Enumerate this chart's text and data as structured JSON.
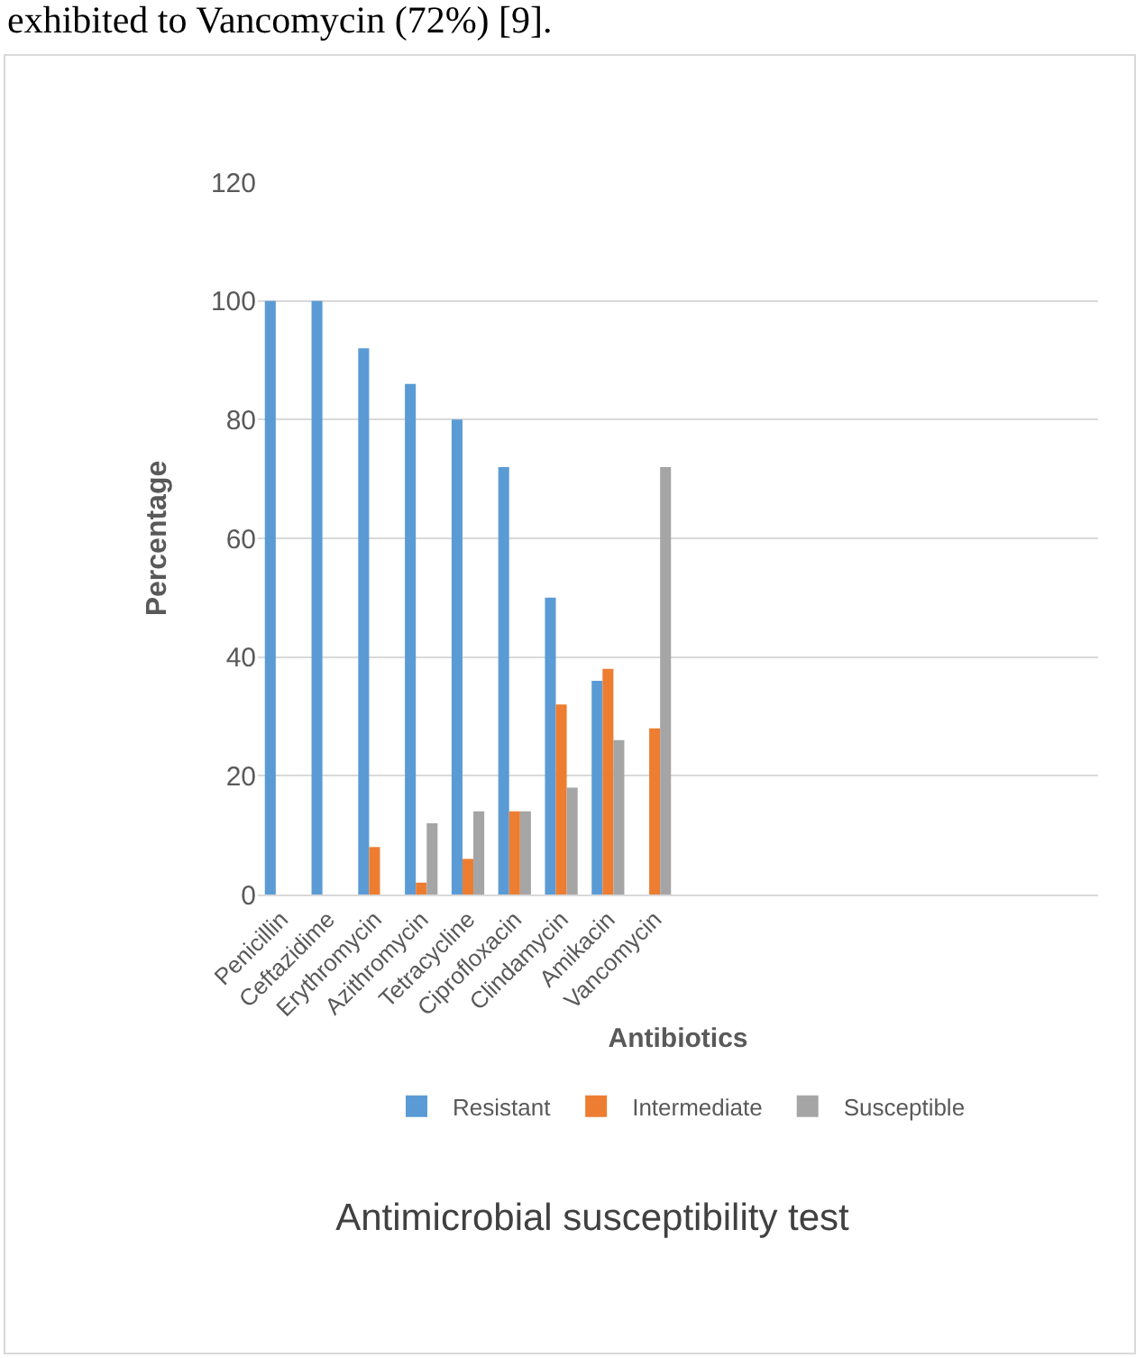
{
  "chart_data": {
    "type": "bar",
    "title": "Antimicrobial susceptibility test",
    "xlabel": "Antibiotics",
    "ylabel": "Percentage",
    "annotations": [
      "exhibited to Vancomycin (72%) [9]."
    ],
    "categories": [
      "Penicillin",
      "Ceftazidime",
      "Erythromycin",
      "Azithromycin",
      "Tetracycline",
      "Ciprofloxacin",
      "Clindamycin",
      "Amikacin",
      "Vancomycin",
      null,
      null,
      null,
      null,
      null,
      null,
      null,
      null,
      null
    ],
    "series": [
      {
        "name": "Resistant",
        "color": "#5b9bd5",
        "values": [
          100,
          100,
          92,
          86,
          80,
          72,
          50,
          36,
          0,
          null,
          null,
          null,
          null,
          null,
          null,
          null,
          null,
          null
        ]
      },
      {
        "name": "Intermediate",
        "color": "#ed7d31",
        "values": [
          0,
          0,
          8,
          2,
          6,
          14,
          32,
          38,
          28,
          null,
          null,
          null,
          null,
          null,
          null,
          null,
          null,
          null
        ]
      },
      {
        "name": "Susceptible",
        "color": "#a5a5a5",
        "values": [
          0,
          0,
          0,
          12,
          14,
          14,
          18,
          26,
          72,
          null,
          null,
          null,
          null,
          null,
          null,
          null,
          null,
          null
        ]
      }
    ],
    "ylim": [
      0,
      120
    ],
    "yticks": [
      0,
      20,
      40,
      60,
      80,
      100,
      120
    ],
    "grid": "y",
    "legend": "bottom"
  }
}
